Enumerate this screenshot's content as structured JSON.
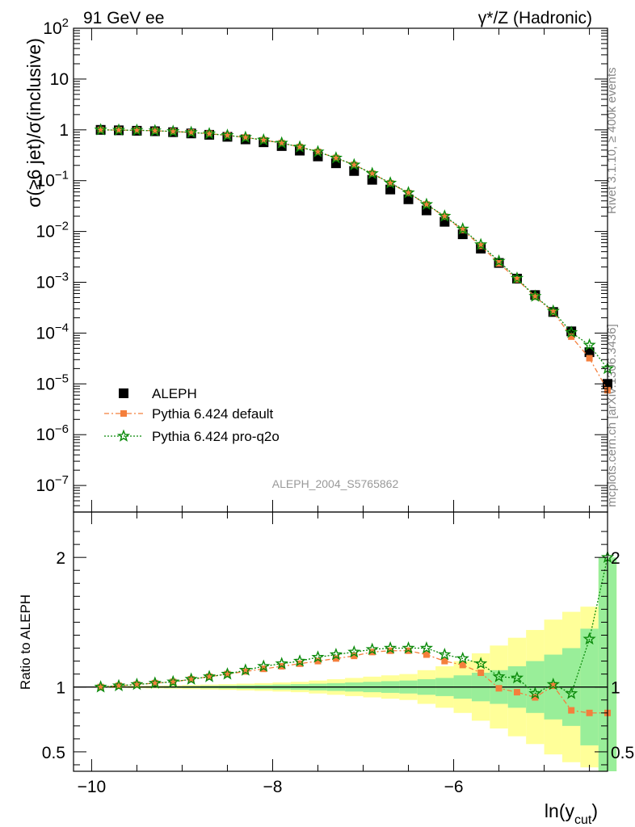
{
  "header": {
    "left_title": "91 GeV ee",
    "right_title": "γ*/Z (Hadronic)"
  },
  "side_labels": {
    "rivet": "Rivet 3.1.10, ≥ 400k events",
    "mcplots": "mcplots.cern.ch [arXiv:1306.3436]"
  },
  "watermark": "ALEPH_2004_S5765862",
  "colors": {
    "aleph": "#000000",
    "pythia_default": "#f47f3c",
    "pythia_proq2o": "#0a8a0a",
    "band_inner": "#99ee99",
    "band_outer": "#ffff99"
  },
  "chart_data": [
    {
      "type": "scatter",
      "panel": "main",
      "ylabel": "σ(≥6 jet)/σ(inclusive)",
      "yscale": "log",
      "xlim": [
        -10.2,
        -4.3
      ],
      "ylim": [
        3e-08,
        100
      ],
      "y_tick_labels": [
        "10^-7",
        "10^-6",
        "10^-5",
        "10^-4",
        "10^-3",
        "10^-2",
        "10^-1",
        "1",
        "10",
        "10^2"
      ],
      "x": [
        -9.9,
        -9.7,
        -9.5,
        -9.3,
        -9.1,
        -8.9,
        -8.7,
        -8.5,
        -8.3,
        -8.1,
        -7.9,
        -7.7,
        -7.5,
        -7.3,
        -7.1,
        -6.9,
        -6.7,
        -6.5,
        -6.3,
        -6.1,
        -5.9,
        -5.7,
        -5.5,
        -5.3,
        -5.1,
        -4.9,
        -4.7,
        -4.5,
        -4.3
      ],
      "legend": {
        "position": "bottom-left",
        "entries": [
          "ALEPH",
          "Pythia 6.424 default",
          "Pythia 6.424 pro-q2o"
        ]
      },
      "series": [
        {
          "name": "ALEPH",
          "marker": "square",
          "values": [
            1.0,
            0.98,
            0.96,
            0.94,
            0.9,
            0.85,
            0.8,
            0.73,
            0.65,
            0.57,
            0.48,
            0.39,
            0.3,
            0.22,
            0.155,
            0.104,
            0.067,
            0.043,
            0.026,
            0.0155,
            0.0088,
            0.0046,
            0.0024,
            0.00118,
            0.00056,
            0.00026,
            0.000108,
            4.2e-05,
            1e-05
          ]
        },
        {
          "name": "Pythia 6.424 default",
          "marker": "square",
          "values": [
            1.0,
            0.99,
            0.98,
            0.96,
            0.93,
            0.89,
            0.84,
            0.78,
            0.71,
            0.63,
            0.55,
            0.46,
            0.37,
            0.28,
            0.205,
            0.138,
            0.089,
            0.057,
            0.034,
            0.0196,
            0.0107,
            0.0052,
            0.00236,
            0.00114,
            0.00052,
            0.00026,
            8.5e-05,
            3.2e-05,
            7.5e-06
          ]
        },
        {
          "name": "Pythia 6.424 pro-q2o",
          "marker": "star",
          "values": [
            1.0,
            0.99,
            0.98,
            0.96,
            0.93,
            0.89,
            0.84,
            0.78,
            0.71,
            0.63,
            0.55,
            0.46,
            0.37,
            0.28,
            0.205,
            0.138,
            0.09,
            0.058,
            0.034,
            0.02,
            0.0112,
            0.0055,
            0.0026,
            0.0012,
            0.00053,
            0.00027,
            0.000103,
            5.8e-05,
            2e-05
          ]
        }
      ]
    },
    {
      "type": "scatter",
      "panel": "ratio",
      "xlabel": "ln(y_cut)",
      "ylabel": "Ratio to ALEPH",
      "ylim": [
        0.35,
        2.35
      ],
      "xlim": [
        -10.2,
        -4.3
      ],
      "x_ticks": [
        -10,
        -8,
        -6
      ],
      "y_ticks": [
        0.5,
        1,
        2
      ],
      "x": [
        -9.9,
        -9.7,
        -9.5,
        -9.3,
        -9.1,
        -8.9,
        -8.7,
        -8.5,
        -8.3,
        -8.1,
        -7.9,
        -7.7,
        -7.5,
        -7.3,
        -7.1,
        -6.9,
        -6.7,
        -6.5,
        -6.3,
        -6.1,
        -5.9,
        -5.7,
        -5.5,
        -5.3,
        -5.1,
        -4.9,
        -4.7,
        -4.5,
        -4.3
      ],
      "bands": {
        "inner": [
          0.003,
          0.004,
          0.005,
          0.006,
          0.007,
          0.008,
          0.01,
          0.012,
          0.014,
          0.016,
          0.019,
          0.022,
          0.026,
          0.03,
          0.035,
          0.04,
          0.045,
          0.05,
          0.06,
          0.07,
          0.09,
          0.11,
          0.13,
          0.16,
          0.2,
          0.25,
          0.3,
          0.45,
          1.0
        ],
        "outer": [
          0.005,
          0.007,
          0.009,
          0.011,
          0.013,
          0.016,
          0.019,
          0.022,
          0.026,
          0.03,
          0.035,
          0.04,
          0.05,
          0.06,
          0.07,
          0.08,
          0.09,
          0.1,
          0.13,
          0.16,
          0.2,
          0.26,
          0.32,
          0.38,
          0.44,
          0.52,
          0.58,
          0.62,
          0.95
        ]
      },
      "series": [
        {
          "name": "Pythia 6.424 default",
          "values": [
            1.0,
            1.01,
            1.02,
            1.03,
            1.04,
            1.06,
            1.08,
            1.1,
            1.12,
            1.14,
            1.16,
            1.18,
            1.2,
            1.22,
            1.24,
            1.27,
            1.28,
            1.28,
            1.25,
            1.2,
            1.17,
            1.11,
            0.99,
            0.96,
            0.92,
            1.01,
            0.82,
            0.8,
            0.8
          ]
        },
        {
          "name": "Pythia 6.424 pro-q2o",
          "values": [
            1.0,
            1.01,
            1.02,
            1.03,
            1.04,
            1.06,
            1.08,
            1.1,
            1.13,
            1.16,
            1.18,
            1.2,
            1.23,
            1.25,
            1.27,
            1.29,
            1.3,
            1.3,
            1.3,
            1.25,
            1.22,
            1.18,
            1.08,
            1.07,
            0.95,
            1.02,
            0.95,
            1.37,
            2.0
          ]
        }
      ]
    }
  ]
}
